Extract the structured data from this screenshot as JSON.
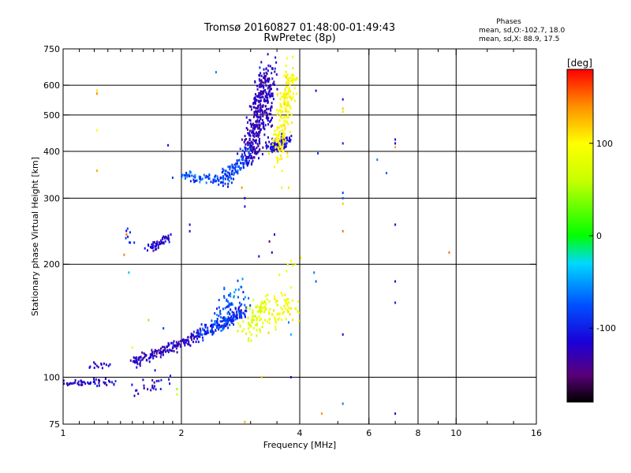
{
  "chart_data": {
    "type": "scatter",
    "title": "Tromsø 20160827 01:48:00-01:49:43",
    "subtitle": "RwPretec (8p)",
    "legend_title": "Phases",
    "legend_lines": [
      "mean, sd,O:-102.7, 18.0",
      "mean, sd,X:  88.9, 17.5"
    ],
    "xlabel": "Frequency [MHz]",
    "ylabel": "Stationary phase Virtual Height [km]",
    "x_scale": "log2",
    "y_scale": "log",
    "xlim": [
      1,
      16
    ],
    "ylim": [
      75,
      750
    ],
    "x_ticks": [
      1,
      2,
      4,
      6,
      8,
      10,
      16
    ],
    "x_tick_labels": [
      "1",
      "2",
      "4",
      "6",
      "8",
      "10",
      "16"
    ],
    "y_ticks": [
      75,
      100,
      200,
      300,
      400,
      500,
      600,
      750
    ],
    "y_tick_labels": [
      "75",
      "100",
      "200",
      "300",
      "400",
      "500",
      "600",
      "750"
    ],
    "x_minor_ticks": [
      1.1,
      1.2,
      1.3,
      1.4,
      1.5,
      1.6,
      1.7,
      1.8,
      1.9,
      2.5,
      3,
      3.5,
      5,
      7,
      9,
      12,
      14
    ],
    "grid": true,
    "colorbar": {
      "unit_label": "[deg]",
      "range": [
        -180,
        180
      ],
      "ticks": [
        100,
        0,
        -100
      ],
      "tick_labels": [
        "100",
        "0",
        "-100"
      ],
      "stops": [
        {
          "v": -180,
          "c": "#000000"
        },
        {
          "v": -150,
          "c": "#5a007a"
        },
        {
          "v": -115,
          "c": "#1a00d8"
        },
        {
          "v": -75,
          "c": "#0050ff"
        },
        {
          "v": -30,
          "c": "#00d8ff"
        },
        {
          "v": 0,
          "c": "#00ff00"
        },
        {
          "v": 60,
          "c": "#c8ff00"
        },
        {
          "v": 100,
          "c": "#ffff00"
        },
        {
          "v": 140,
          "c": "#ff9000"
        },
        {
          "v": 180,
          "c": "#ff0000"
        }
      ]
    },
    "series": [
      {
        "traces": [
          {
            "f0": 1.0,
            "f1": 1.18,
            "h0": 96,
            "h1": 97,
            "n": 28,
            "sf": 0.02,
            "sh": 0.012,
            "p": -120,
            "sp": 12
          },
          {
            "f0": 1.18,
            "f1": 1.35,
            "h0": 97,
            "h1": 97,
            "n": 22,
            "sf": 0.02,
            "sh": 0.01,
            "p": -115,
            "sp": 12
          },
          {
            "f0": 1.18,
            "f1": 1.3,
            "h0": 107,
            "h1": 108,
            "n": 14,
            "sf": 0.015,
            "sh": 0.01,
            "p": -118,
            "sp": 10
          },
          {
            "f0": 1.5,
            "f1": 2.2,
            "h0": 109,
            "h1": 128,
            "n": 150,
            "sf": 0.012,
            "sh": 0.015,
            "p": -125,
            "sp": 12
          },
          {
            "f0": 2.2,
            "f1": 2.9,
            "h0": 128,
            "h1": 150,
            "n": 170,
            "sf": 0.015,
            "sh": 0.02,
            "p": -95,
            "sp": 15
          },
          {
            "f0": 2.5,
            "f1": 2.85,
            "h0": 145,
            "h1": 170,
            "n": 70,
            "sf": 0.03,
            "sh": 0.05,
            "p": -75,
            "sp": 15
          },
          {
            "f0": 2.9,
            "f1": 3.3,
            "h0": 135,
            "h1": 155,
            "n": 90,
            "sf": 0.03,
            "sh": 0.04,
            "p": 75,
            "sp": 10
          },
          {
            "f0": 3.3,
            "f1": 3.85,
            "h0": 145,
            "h1": 160,
            "n": 70,
            "sf": 0.03,
            "sh": 0.05,
            "p": 95,
            "sp": 12
          },
          {
            "f0": 1.55,
            "f1": 1.85,
            "h0": 92,
            "h1": 98,
            "n": 25,
            "sf": 0.03,
            "sh": 0.03,
            "p": -120,
            "sp": 15
          },
          {
            "f0": 1.65,
            "f1": 1.85,
            "h0": 220,
            "h1": 235,
            "n": 55,
            "sf": 0.015,
            "sh": 0.01,
            "p": -118,
            "sp": 12
          },
          {
            "f0": 1.45,
            "f1": 1.5,
            "h0": 250,
            "h1": 232,
            "n": 8,
            "sf": 0.01,
            "sh": 0.02,
            "p": -95,
            "sp": 10
          },
          {
            "f0": 2.0,
            "f1": 2.6,
            "h0": 345,
            "h1": 335,
            "n": 70,
            "sf": 0.015,
            "sh": 0.015,
            "p": -75,
            "sp": 15
          },
          {
            "f0": 2.55,
            "f1": 3.0,
            "h0": 335,
            "h1": 390,
            "n": 110,
            "sf": 0.015,
            "sh": 0.03,
            "p": -85,
            "sp": 15
          },
          {
            "f0": 3.0,
            "f1": 3.3,
            "h0": 390,
            "h1": 640,
            "n": 330,
            "sf": 0.025,
            "sh": 0.06,
            "p": -125,
            "sp": 12
          },
          {
            "f0": 3.35,
            "f1": 3.75,
            "h0": 410,
            "h1": 430,
            "n": 90,
            "sf": 0.02,
            "sh": 0.02,
            "p": -112,
            "sp": 15
          },
          {
            "f0": 3.5,
            "f1": 3.8,
            "h0": 400,
            "h1": 640,
            "n": 200,
            "sf": 0.02,
            "sh": 0.06,
            "p": 100,
            "sp": 8
          },
          {
            "f0": 3.3,
            "f1": 3.45,
            "h0": 460,
            "h1": 650,
            "n": 50,
            "sf": 0.015,
            "sh": 0.05,
            "p": -120,
            "sp": 12
          },
          {
            "f0": 3.6,
            "f1": 3.95,
            "h0": 190,
            "h1": 205,
            "n": 6,
            "sf": 0.02,
            "sh": 0.02,
            "p": 85,
            "sp": 10
          }
        ]
      },
      {
        "points": [
          [
            1.22,
            580,
            110
          ],
          [
            1.22,
            570,
            140
          ],
          [
            1.22,
            455,
            100
          ],
          [
            1.22,
            355,
            130
          ],
          [
            1.45,
            240,
            150
          ],
          [
            1.43,
            212,
            145
          ],
          [
            1.47,
            190,
            -40
          ],
          [
            1.85,
            415,
            -115
          ],
          [
            1.9,
            340,
            -85
          ],
          [
            1.88,
            240,
            -115
          ],
          [
            2.1,
            255,
            -120
          ],
          [
            2.1,
            245,
            -125
          ],
          [
            2.45,
            650,
            -60
          ],
          [
            2.85,
            320,
            140
          ],
          [
            2.9,
            285,
            -120
          ],
          [
            2.9,
            300,
            -115
          ],
          [
            3.15,
            210,
            -110
          ],
          [
            3.35,
            230,
            -150
          ],
          [
            3.4,
            215,
            -120
          ],
          [
            3.45,
            240,
            -125
          ],
          [
            3.6,
            320,
            80
          ],
          [
            3.75,
            320,
            110
          ],
          [
            3.9,
            200,
            80
          ],
          [
            4.4,
            580,
            -110
          ],
          [
            4.45,
            395,
            -90
          ],
          [
            4.35,
            190,
            -60
          ],
          [
            4.4,
            180,
            -70
          ],
          [
            4.55,
            80,
            140
          ],
          [
            5.15,
            550,
            -110
          ],
          [
            5.15,
            520,
            120
          ],
          [
            5.15,
            510,
            110
          ],
          [
            5.15,
            420,
            -100
          ],
          [
            5.15,
            310,
            -80
          ],
          [
            5.15,
            300,
            -70
          ],
          [
            5.15,
            290,
            120
          ],
          [
            5.15,
            245,
            150
          ],
          [
            5.15,
            130,
            -115
          ],
          [
            5.15,
            85,
            -60
          ],
          [
            6.3,
            380,
            -60
          ],
          [
            6.65,
            350,
            -70
          ],
          [
            7.0,
            430,
            -130
          ],
          [
            7.0,
            420,
            -120
          ],
          [
            7.0,
            410,
            130
          ],
          [
            7.0,
            255,
            -130
          ],
          [
            7.0,
            180,
            -110
          ],
          [
            7.0,
            158,
            -100
          ],
          [
            7.0,
            80,
            -125
          ],
          [
            9.6,
            215,
            150
          ],
          [
            1.95,
            90,
            60
          ],
          [
            1.95,
            93,
            40
          ],
          [
            2.9,
            76,
            130
          ],
          [
            3.2,
            100,
            120
          ],
          [
            3.8,
            100,
            -120
          ],
          [
            3.8,
            130,
            -40
          ],
          [
            3.75,
            140,
            -60
          ],
          [
            1.65,
            142,
            40
          ],
          [
            1.5,
            120,
            80
          ],
          [
            1.8,
            135,
            -80
          ]
        ]
      }
    ]
  }
}
